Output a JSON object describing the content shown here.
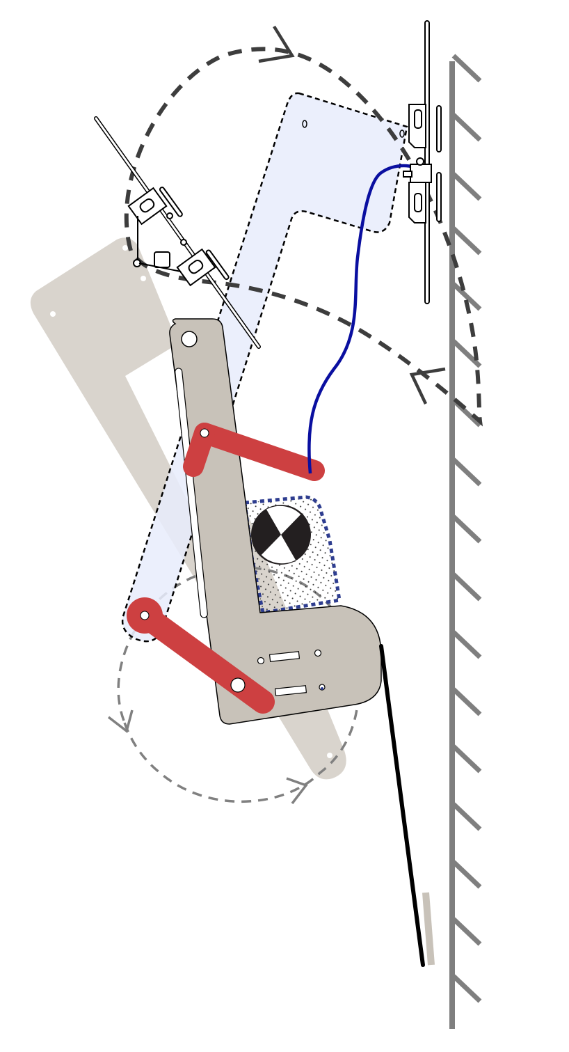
{
  "diagram": {
    "description_elements": [
      "wall",
      "base-bracket",
      "upper-link",
      "lower-link",
      "motor-unit",
      "gripper-upper-right",
      "gripper-upper-left",
      "trajectory-upper",
      "trajectory-lower",
      "tail-strut",
      "cable"
    ],
    "colors": {
      "wall": "#7f7f7f",
      "ghost_link": "#d9d4cd",
      "bracket": "#c8c2b9",
      "red_link": "#cd4041",
      "highlight_link": "#e8ecfb",
      "cable": "#0a0fa0",
      "trajectory_dark": "#3d3d3d",
      "trajectory_light": "#808080",
      "motor_region": "#2e3d8f",
      "tail": "#000000"
    },
    "icons": [
      "motor-icon",
      "arrow-icon",
      "gripper-icon"
    ]
  }
}
